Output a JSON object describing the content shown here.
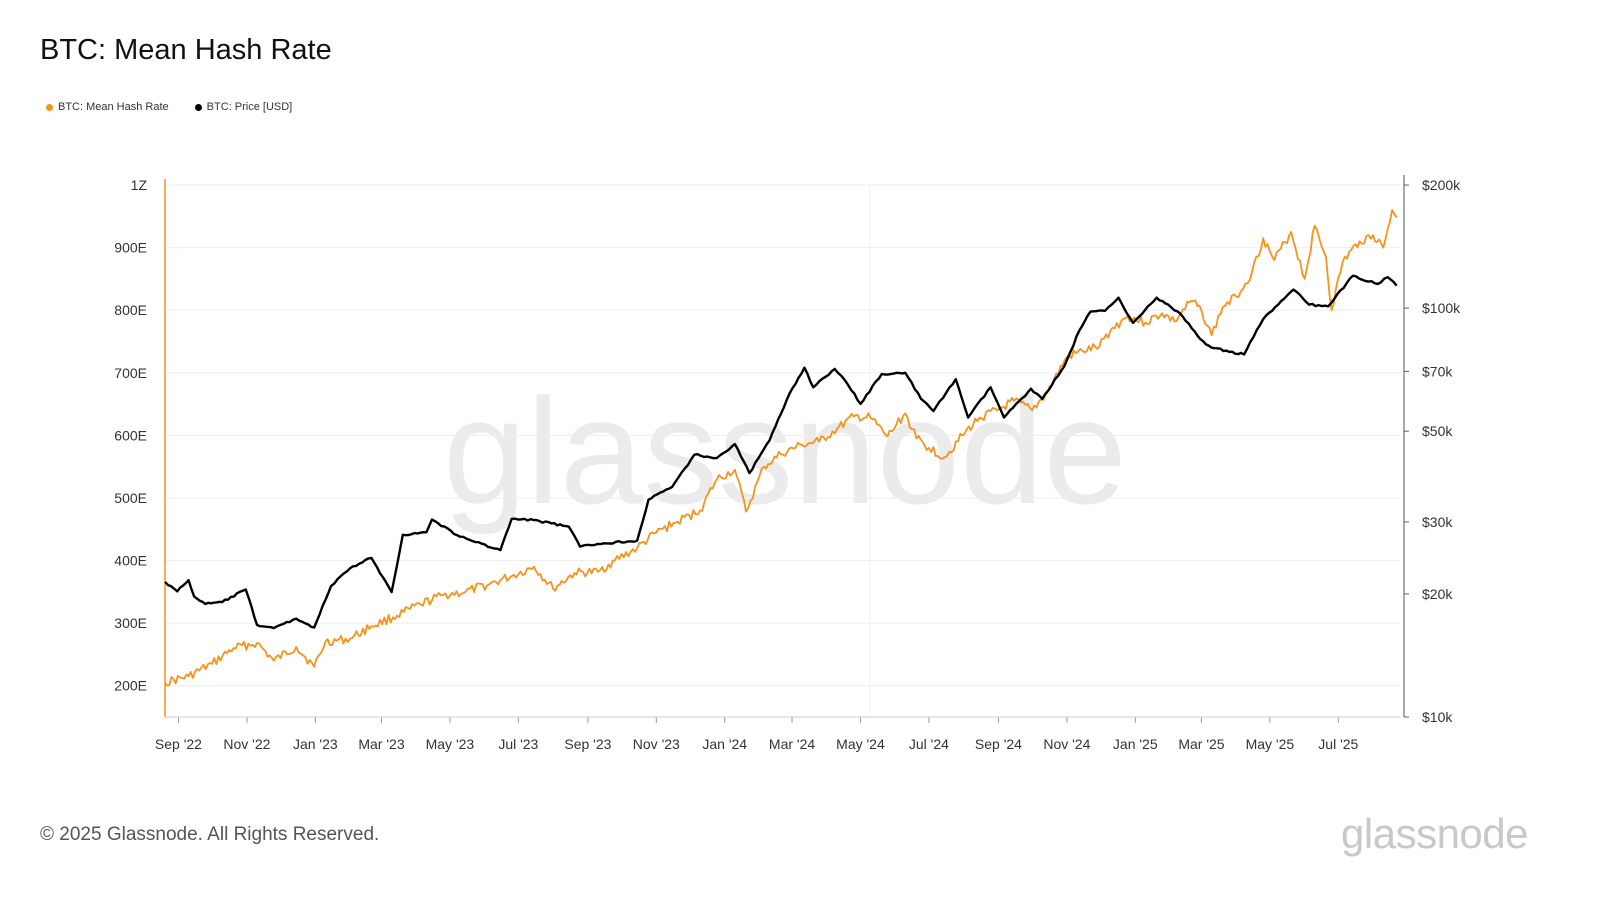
{
  "title": "BTC: Mean Hash Rate",
  "legend": [
    {
      "label": "BTC: Mean Hash Rate",
      "color": "#f7931a"
    },
    {
      "label": "BTC: Price [USD]",
      "color": "#000000"
    }
  ],
  "footer": "© 2025 Glassnode. All Rights Reserved.",
  "brand": "glassnode",
  "watermark": "glassnode",
  "chart_data": {
    "type": "line",
    "y_left_ticks": [
      "200E",
      "300E",
      "400E",
      "500E",
      "600E",
      "700E",
      "800E",
      "900E",
      "1Z"
    ],
    "y_left_range_EH": [
      150,
      1000
    ],
    "y_right_ticks": [
      "$10k",
      "$20k",
      "$30k",
      "$50k",
      "$70k",
      "$100k",
      "$200k"
    ],
    "y_right_scale": "log",
    "y_right_range_usd": [
      10000,
      200000
    ],
    "x_ticks": [
      "Sep '22",
      "Nov '22",
      "Jan '23",
      "Mar '23",
      "May '23",
      "Jul '23",
      "Sep '23",
      "Nov '23",
      "Jan '24",
      "Mar '24",
      "May '24",
      "Jul '24",
      "Sep '24",
      "Nov '24",
      "Jan '25",
      "Mar '25",
      "May '25",
      "Jul '25"
    ],
    "x_range": [
      "2022-08-20",
      "2025-08-25"
    ],
    "grid": true,
    "legend_position": "top-left",
    "series": [
      {
        "name": "BTC: Mean Hash Rate",
        "axis": "left",
        "color": "#f7931a",
        "points": [
          [
            "2022-08-20",
            205
          ],
          [
            "2022-09-10",
            215
          ],
          [
            "2022-10-01",
            235
          ],
          [
            "2022-10-20",
            260
          ],
          [
            "2022-11-10",
            268
          ],
          [
            "2022-11-25",
            240
          ],
          [
            "2022-12-15",
            262
          ],
          [
            "2022-12-31",
            230
          ],
          [
            "2023-01-10",
            270
          ],
          [
            "2023-02-01",
            275
          ],
          [
            "2023-02-20",
            295
          ],
          [
            "2023-03-15",
            312
          ],
          [
            "2023-04-05",
            330
          ],
          [
            "2023-04-25",
            345
          ],
          [
            "2023-05-15",
            350
          ],
          [
            "2023-06-05",
            362
          ],
          [
            "2023-06-25",
            375
          ],
          [
            "2023-07-15",
            390
          ],
          [
            "2023-08-01",
            355
          ],
          [
            "2023-08-20",
            380
          ],
          [
            "2023-09-10",
            382
          ],
          [
            "2023-09-25",
            400
          ],
          [
            "2023-10-15",
            420
          ],
          [
            "2023-11-01",
            445
          ],
          [
            "2023-11-20",
            462
          ],
          [
            "2023-12-10",
            480
          ],
          [
            "2023-12-25",
            530
          ],
          [
            "2024-01-10",
            545
          ],
          [
            "2024-01-20",
            478
          ],
          [
            "2024-02-05",
            550
          ],
          [
            "2024-02-20",
            570
          ],
          [
            "2024-03-10",
            585
          ],
          [
            "2024-03-25",
            590
          ],
          [
            "2024-04-10",
            610
          ],
          [
            "2024-04-25",
            630
          ],
          [
            "2024-05-10",
            628
          ],
          [
            "2024-05-25",
            598
          ],
          [
            "2024-06-10",
            635
          ],
          [
            "2024-06-20",
            595
          ],
          [
            "2024-07-01",
            580
          ],
          [
            "2024-07-15",
            565
          ],
          [
            "2024-07-31",
            600
          ],
          [
            "2024-08-15",
            628
          ],
          [
            "2024-08-31",
            640
          ],
          [
            "2024-09-15",
            655
          ],
          [
            "2024-10-01",
            640
          ],
          [
            "2024-10-15",
            670
          ],
          [
            "2024-11-01",
            725
          ],
          [
            "2024-11-15",
            735
          ],
          [
            "2024-11-30",
            742
          ],
          [
            "2024-12-10",
            768
          ],
          [
            "2024-12-25",
            790
          ],
          [
            "2025-01-10",
            780
          ],
          [
            "2025-01-25",
            795
          ],
          [
            "2025-02-05",
            782
          ],
          [
            "2025-02-20",
            815
          ],
          [
            "2025-03-01",
            800
          ],
          [
            "2025-03-10",
            760
          ],
          [
            "2025-03-20",
            805
          ],
          [
            "2025-04-01",
            822
          ],
          [
            "2025-04-15",
            860
          ],
          [
            "2025-04-25",
            915
          ],
          [
            "2025-05-05",
            880
          ],
          [
            "2025-05-20",
            925
          ],
          [
            "2025-06-01",
            850
          ],
          [
            "2025-06-10",
            935
          ],
          [
            "2025-06-20",
            885
          ],
          [
            "2025-06-25",
            800
          ],
          [
            "2025-07-05",
            878
          ],
          [
            "2025-07-20",
            910
          ],
          [
            "2025-08-01",
            920
          ],
          [
            "2025-08-10",
            900
          ],
          [
            "2025-08-18",
            960
          ],
          [
            "2025-08-22",
            948
          ]
        ]
      },
      {
        "name": "BTC: Price [USD]",
        "axis": "right",
        "color": "#000000",
        "points": [
          [
            "2022-08-20",
            21400
          ],
          [
            "2022-08-31",
            20300
          ],
          [
            "2022-09-10",
            21600
          ],
          [
            "2022-09-15",
            19700
          ],
          [
            "2022-09-25",
            18900
          ],
          [
            "2022-10-10",
            19100
          ],
          [
            "2022-10-31",
            20500
          ],
          [
            "2022-11-10",
            16800
          ],
          [
            "2022-11-25",
            16500
          ],
          [
            "2022-12-15",
            17400
          ],
          [
            "2022-12-31",
            16550
          ],
          [
            "2023-01-15",
            20900
          ],
          [
            "2023-02-01",
            23100
          ],
          [
            "2023-02-20",
            24500
          ],
          [
            "2023-03-10",
            20200
          ],
          [
            "2023-03-20",
            27900
          ],
          [
            "2023-04-10",
            28300
          ],
          [
            "2023-04-15",
            30400
          ],
          [
            "2023-05-10",
            27600
          ],
          [
            "2023-06-15",
            25600
          ],
          [
            "2023-06-25",
            30500
          ],
          [
            "2023-07-15",
            30300
          ],
          [
            "2023-08-15",
            29200
          ],
          [
            "2023-08-25",
            26100
          ],
          [
            "2023-09-15",
            26600
          ],
          [
            "2023-10-15",
            27000
          ],
          [
            "2023-10-25",
            34000
          ],
          [
            "2023-11-15",
            36500
          ],
          [
            "2023-12-05",
            43800
          ],
          [
            "2023-12-25",
            43000
          ],
          [
            "2024-01-10",
            46500
          ],
          [
            "2024-01-23",
            39500
          ],
          [
            "2024-02-10",
            47500
          ],
          [
            "2024-02-28",
            62000
          ],
          [
            "2024-03-12",
            71500
          ],
          [
            "2024-03-20",
            64000
          ],
          [
            "2024-04-08",
            71000
          ],
          [
            "2024-04-20",
            64900
          ],
          [
            "2024-05-01",
            58300
          ],
          [
            "2024-05-20",
            69000
          ],
          [
            "2024-06-10",
            69500
          ],
          [
            "2024-06-24",
            60000
          ],
          [
            "2024-07-05",
            56000
          ],
          [
            "2024-07-25",
            67000
          ],
          [
            "2024-08-05",
            54000
          ],
          [
            "2024-08-25",
            64000
          ],
          [
            "2024-09-06",
            54000
          ],
          [
            "2024-09-30",
            63500
          ],
          [
            "2024-10-10",
            60000
          ],
          [
            "2024-10-30",
            72300
          ],
          [
            "2024-11-12",
            88000
          ],
          [
            "2024-11-22",
            98000
          ],
          [
            "2024-12-05",
            98500
          ],
          [
            "2024-12-17",
            106000
          ],
          [
            "2024-12-30",
            92000
          ],
          [
            "2025-01-20",
            106000
          ],
          [
            "2025-02-10",
            97000
          ],
          [
            "2025-02-28",
            84000
          ],
          [
            "2025-03-10",
            80000
          ],
          [
            "2025-04-08",
            77000
          ],
          [
            "2025-04-25",
            94000
          ],
          [
            "2025-05-22",
            111000
          ],
          [
            "2025-06-05",
            102000
          ],
          [
            "2025-06-22",
            101000
          ],
          [
            "2025-07-14",
            120000
          ],
          [
            "2025-08-05",
            114500
          ],
          [
            "2025-08-14",
            119000
          ],
          [
            "2025-08-22",
            113500
          ]
        ]
      }
    ]
  }
}
